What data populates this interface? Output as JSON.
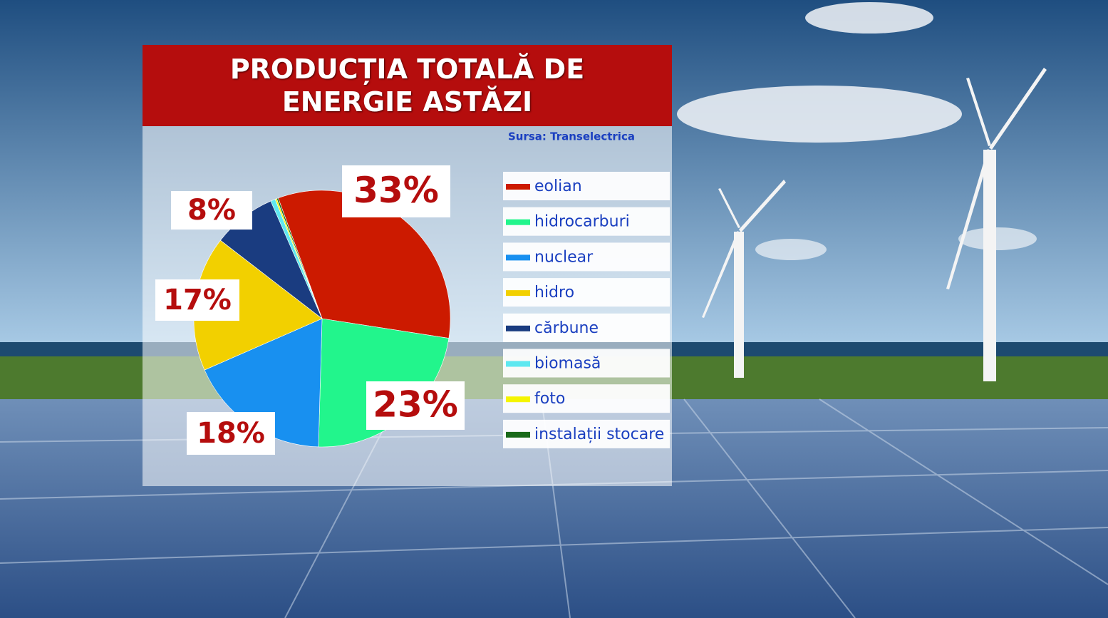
{
  "chart_data": {
    "type": "pie",
    "title": "PRODUCȚIA TOTALĂ DE ENERGIE ASTĂZI",
    "source": "Sursa: Transelectrica",
    "categories": [
      "eolian",
      "hidrocarburi",
      "nuclear",
      "hidro",
      "cărbune",
      "biomasă",
      "foto",
      "instalații stocare"
    ],
    "values": [
      33,
      23,
      18,
      17,
      8,
      0.6,
      0.2,
      0.2
    ],
    "value_labels": [
      "33%",
      "23%",
      "18%",
      "17%",
      "8%",
      null,
      null,
      null
    ],
    "colors": [
      "#cc1a00",
      "#22f58c",
      "#1890f0",
      "#f2d000",
      "#1a3c80",
      "#5ee8f0",
      "#f5f500",
      "#1a6a1a"
    ]
  }
}
